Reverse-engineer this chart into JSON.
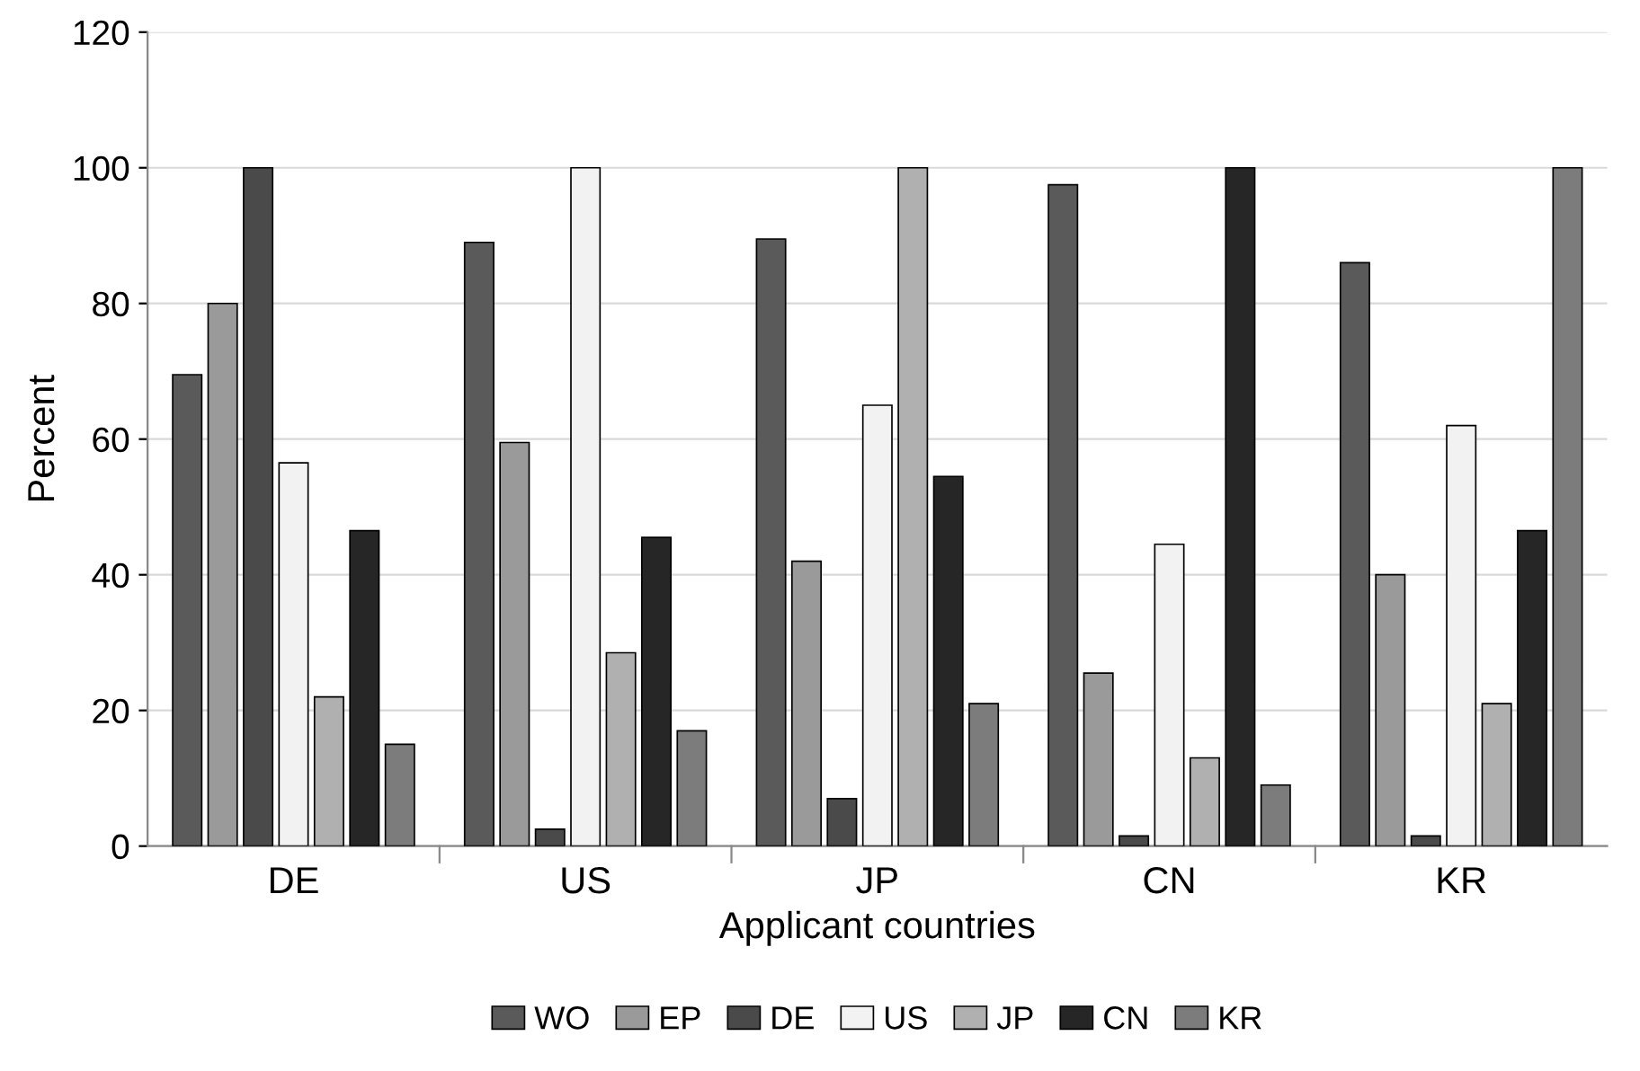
{
  "chart_data": {
    "type": "bar",
    "xlabel": "Applicant countries",
    "ylabel": "Percent",
    "categories": [
      "DE",
      "US",
      "JP",
      "CN",
      "KR"
    ],
    "series": [
      {
        "name": "WO",
        "color": "#5a5a5a",
        "values": [
          69.5,
          89,
          89.5,
          97.5,
          86
        ]
      },
      {
        "name": "EP",
        "color": "#9a9a9a",
        "values": [
          80,
          59.5,
          42,
          25.5,
          40
        ]
      },
      {
        "name": "DE",
        "color": "#4a4a4a",
        "values": [
          100,
          2.5,
          7,
          1.5,
          1.5
        ]
      },
      {
        "name": "US",
        "color": "#f2f2f2",
        "values": [
          56.5,
          100,
          65,
          44.5,
          62
        ]
      },
      {
        "name": "JP",
        "color": "#b0b0b0",
        "values": [
          22,
          28.5,
          100,
          13,
          21
        ]
      },
      {
        "name": "CN",
        "color": "#262626",
        "values": [
          46.5,
          45.5,
          54.5,
          100,
          46.5
        ]
      },
      {
        "name": "KR",
        "color": "#7c7c7c",
        "values": [
          15,
          17,
          21,
          9,
          100
        ]
      }
    ],
    "ylim": [
      0,
      120
    ],
    "yticks": [
      0,
      20,
      40,
      60,
      80,
      100,
      120
    ],
    "grid": "y",
    "legend": "bottom"
  }
}
